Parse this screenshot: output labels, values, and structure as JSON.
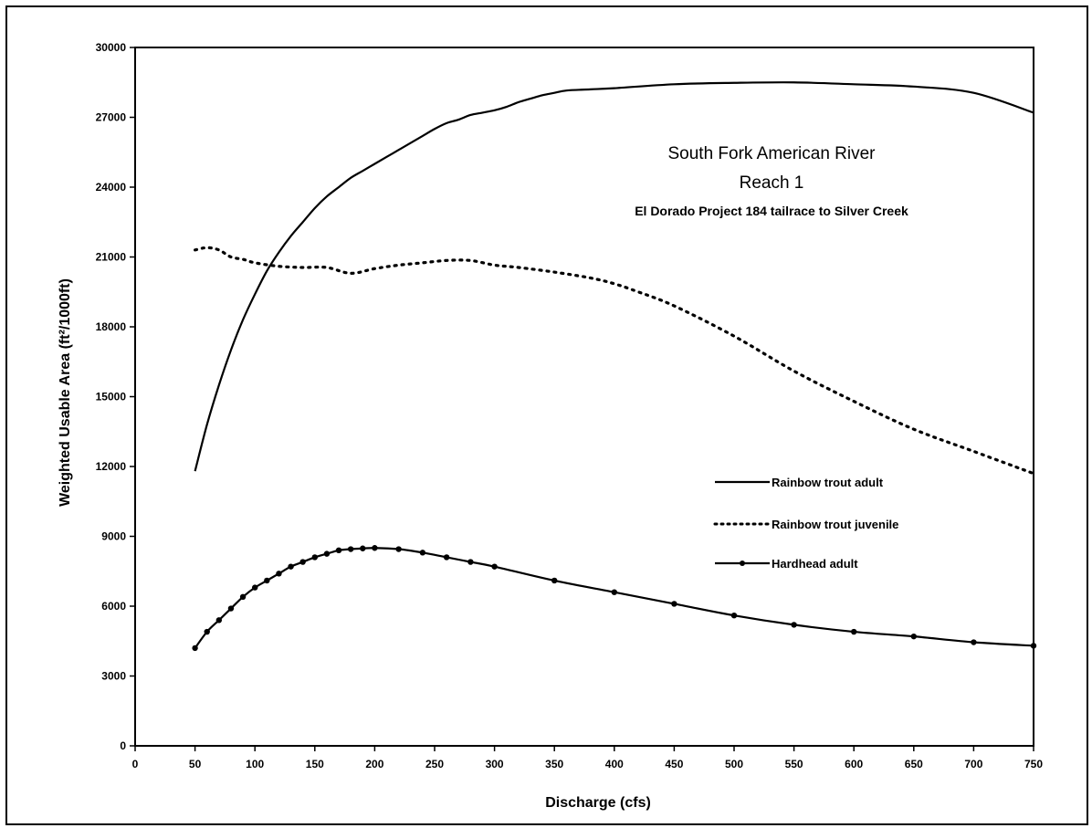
{
  "chart_data": {
    "type": "line",
    "title": "South Fork American River",
    "subtitle": "Reach 1",
    "subtitle2": "El Dorado Project 184 tailrace to Silver Creek",
    "xlabel": "Discharge (cfs)",
    "ylabel": "Weighted Usable Area (ft²/1000ft)",
    "xlim": [
      0,
      750
    ],
    "ylim": [
      0,
      30000
    ],
    "x_ticks": [
      "0",
      "50",
      "100",
      "150",
      "200",
      "250",
      "300",
      "350",
      "400",
      "450",
      "500",
      "550",
      "600",
      "650",
      "700",
      "750"
    ],
    "y_ticks": [
      "0",
      "3000",
      "6000",
      "9000",
      "12000",
      "15000",
      "18000",
      "21000",
      "24000",
      "27000",
      "30000"
    ],
    "grid": false,
    "legend_position": "right",
    "series": [
      {
        "name": "Rainbow trout adult",
        "style": "solid",
        "x": [
          50,
          60,
          70,
          80,
          90,
          100,
          110,
          120,
          130,
          140,
          150,
          160,
          170,
          180,
          190,
          200,
          210,
          220,
          230,
          240,
          250,
          260,
          270,
          280,
          290,
          300,
          310,
          320,
          330,
          340,
          350,
          360,
          380,
          400,
          450,
          500,
          550,
          600,
          650,
          700,
          750
        ],
        "y": [
          11800,
          13800,
          15500,
          17000,
          18300,
          19400,
          20400,
          21200,
          21900,
          22500,
          23100,
          23600,
          24000,
          24400,
          24700,
          25000,
          25300,
          25600,
          25900,
          26200,
          26500,
          26750,
          26900,
          27100,
          27200,
          27300,
          27450,
          27650,
          27800,
          27950,
          28050,
          28150,
          28200,
          28250,
          28420,
          28480,
          28500,
          28420,
          28320,
          28050,
          27200
        ]
      },
      {
        "name": "Rainbow trout juvenile",
        "style": "dotted",
        "x": [
          50,
          60,
          70,
          80,
          90,
          100,
          120,
          140,
          160,
          180,
          200,
          220,
          240,
          260,
          280,
          300,
          320,
          350,
          380,
          400,
          420,
          450,
          500,
          550,
          600,
          650,
          700,
          750
        ],
        "y": [
          21300,
          21400,
          21300,
          21000,
          20900,
          20750,
          20600,
          20550,
          20550,
          20300,
          20500,
          20650,
          20750,
          20850,
          20850,
          20650,
          20550,
          20350,
          20100,
          19850,
          19500,
          18900,
          17600,
          16100,
          14800,
          13600,
          12650,
          11700
        ]
      },
      {
        "name": "Hardhead adult",
        "style": "solid-marker",
        "x": [
          50,
          60,
          70,
          80,
          90,
          100,
          110,
          120,
          130,
          140,
          150,
          160,
          170,
          180,
          190,
          200,
          220,
          240,
          260,
          280,
          300,
          350,
          400,
          450,
          500,
          550,
          600,
          650,
          700,
          750
        ],
        "y": [
          4200,
          4900,
          5400,
          5900,
          6400,
          6800,
          7100,
          7400,
          7700,
          7900,
          8100,
          8250,
          8400,
          8450,
          8480,
          8500,
          8450,
          8300,
          8100,
          7900,
          7700,
          7100,
          6600,
          6100,
          5600,
          5200,
          4900,
          4700,
          4450,
          4300
        ]
      }
    ]
  }
}
